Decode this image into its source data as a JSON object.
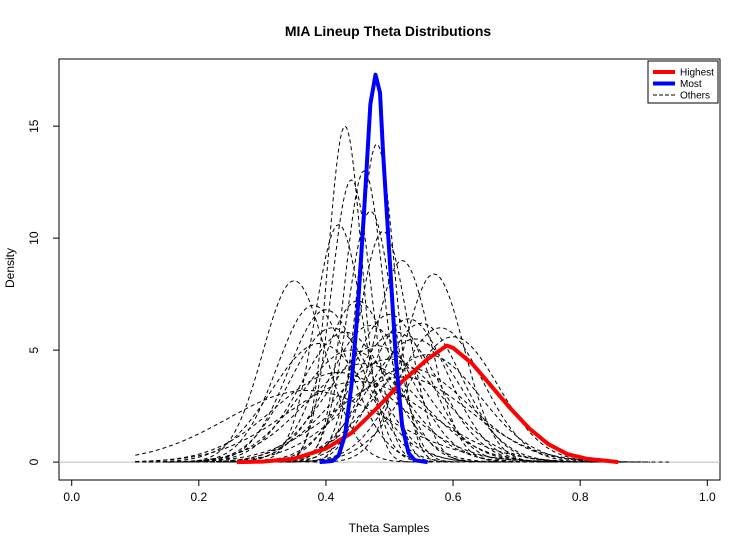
{
  "chart_data": {
    "type": "line",
    "title": "MIA Lineup Theta Distributions",
    "xlabel": "Theta Samples",
    "ylabel": "Density",
    "xlim": [
      -0.02,
      1.02
    ],
    "ylim": [
      -0.8,
      18
    ],
    "xticks": [
      0.0,
      0.2,
      0.4,
      0.6,
      0.8,
      1.0
    ],
    "xtick_labels": [
      "0.0",
      "0.2",
      "0.4",
      "0.6",
      "0.8",
      "1.0"
    ],
    "yticks": [
      0,
      5,
      10,
      15
    ],
    "ytick_labels": [
      "0",
      "5",
      "10",
      "15"
    ],
    "baseline": 0,
    "legend": {
      "position": "top-right",
      "items": [
        {
          "label": "Highest",
          "color": "#ff0000",
          "style": "solid"
        },
        {
          "label": "Most",
          "color": "#0000ff",
          "style": "solid"
        },
        {
          "label": "Others",
          "color": "#000000",
          "style": "dashed"
        }
      ]
    },
    "series": [
      {
        "name": "Highest",
        "color": "#ff0000",
        "style": "solid",
        "points": [
          [
            0.26,
            0.0
          ],
          [
            0.3,
            0.02
          ],
          [
            0.35,
            0.15
          ],
          [
            0.4,
            0.6
          ],
          [
            0.44,
            1.3
          ],
          [
            0.48,
            2.4
          ],
          [
            0.52,
            3.6
          ],
          [
            0.56,
            4.6
          ],
          [
            0.59,
            5.2
          ],
          [
            0.6,
            5.1
          ],
          [
            0.63,
            4.4
          ],
          [
            0.66,
            3.4
          ],
          [
            0.69,
            2.4
          ],
          [
            0.72,
            1.5
          ],
          [
            0.75,
            0.8
          ],
          [
            0.78,
            0.35
          ],
          [
            0.81,
            0.15
          ],
          [
            0.84,
            0.06
          ],
          [
            0.86,
            0.0
          ]
        ]
      },
      {
        "name": "Most",
        "color": "#0000ff",
        "style": "solid",
        "points": [
          [
            0.39,
            0.0
          ],
          [
            0.41,
            0.05
          ],
          [
            0.42,
            0.3
          ],
          [
            0.43,
            1.2
          ],
          [
            0.44,
            3.4
          ],
          [
            0.45,
            6.8
          ],
          [
            0.46,
            11.2
          ],
          [
            0.47,
            16.0
          ],
          [
            0.478,
            17.3
          ],
          [
            0.485,
            16.5
          ],
          [
            0.49,
            13.8
          ],
          [
            0.5,
            9.2
          ],
          [
            0.51,
            4.6
          ],
          [
            0.52,
            1.6
          ],
          [
            0.53,
            0.4
          ],
          [
            0.54,
            0.08
          ],
          [
            0.56,
            0.0
          ]
        ]
      },
      {
        "name": "Others",
        "color": "#000000",
        "style": "dashed",
        "curves": [
          {
            "mean": 0.35,
            "peak": 8.1
          },
          {
            "mean": 0.43,
            "peak": 15.0
          },
          {
            "mean": 0.48,
            "peak": 14.2
          },
          {
            "mean": 0.46,
            "peak": 13.0
          },
          {
            "mean": 0.44,
            "peak": 12.6
          },
          {
            "mean": 0.42,
            "peak": 10.6
          },
          {
            "mean": 0.47,
            "peak": 11.2
          },
          {
            "mean": 0.49,
            "peak": 10.3
          },
          {
            "mean": 0.57,
            "peak": 8.4
          },
          {
            "mean": 0.52,
            "peak": 9.0
          },
          {
            "mean": 0.38,
            "peak": 7.0
          },
          {
            "mean": 0.4,
            "peak": 6.8
          },
          {
            "mean": 0.45,
            "peak": 7.2
          },
          {
            "mean": 0.5,
            "peak": 6.6
          },
          {
            "mean": 0.53,
            "peak": 6.4
          },
          {
            "mean": 0.55,
            "peak": 6.2
          },
          {
            "mean": 0.58,
            "peak": 6.0
          },
          {
            "mean": 0.6,
            "peak": 5.6
          },
          {
            "mean": 0.41,
            "peak": 6.0
          },
          {
            "mean": 0.43,
            "peak": 5.8
          },
          {
            "mean": 0.47,
            "peak": 6.1
          },
          {
            "mean": 0.51,
            "peak": 5.8
          },
          {
            "mean": 0.54,
            "peak": 5.5
          },
          {
            "mean": 0.39,
            "peak": 5.3
          },
          {
            "mean": 0.44,
            "peak": 5.0
          },
          {
            "mean": 0.48,
            "peak": 5.2
          },
          {
            "mean": 0.56,
            "peak": 4.8
          },
          {
            "mean": 0.5,
            "peak": 4.6
          },
          {
            "mean": 0.46,
            "peak": 4.4
          },
          {
            "mean": 0.53,
            "peak": 4.2
          },
          {
            "mean": 0.42,
            "peak": 4.0
          },
          {
            "mean": 0.45,
            "peak": 3.6
          },
          {
            "mean": 0.52,
            "peak": 3.8
          },
          {
            "mean": 0.37,
            "peak": 3.2
          }
        ]
      }
    ]
  }
}
